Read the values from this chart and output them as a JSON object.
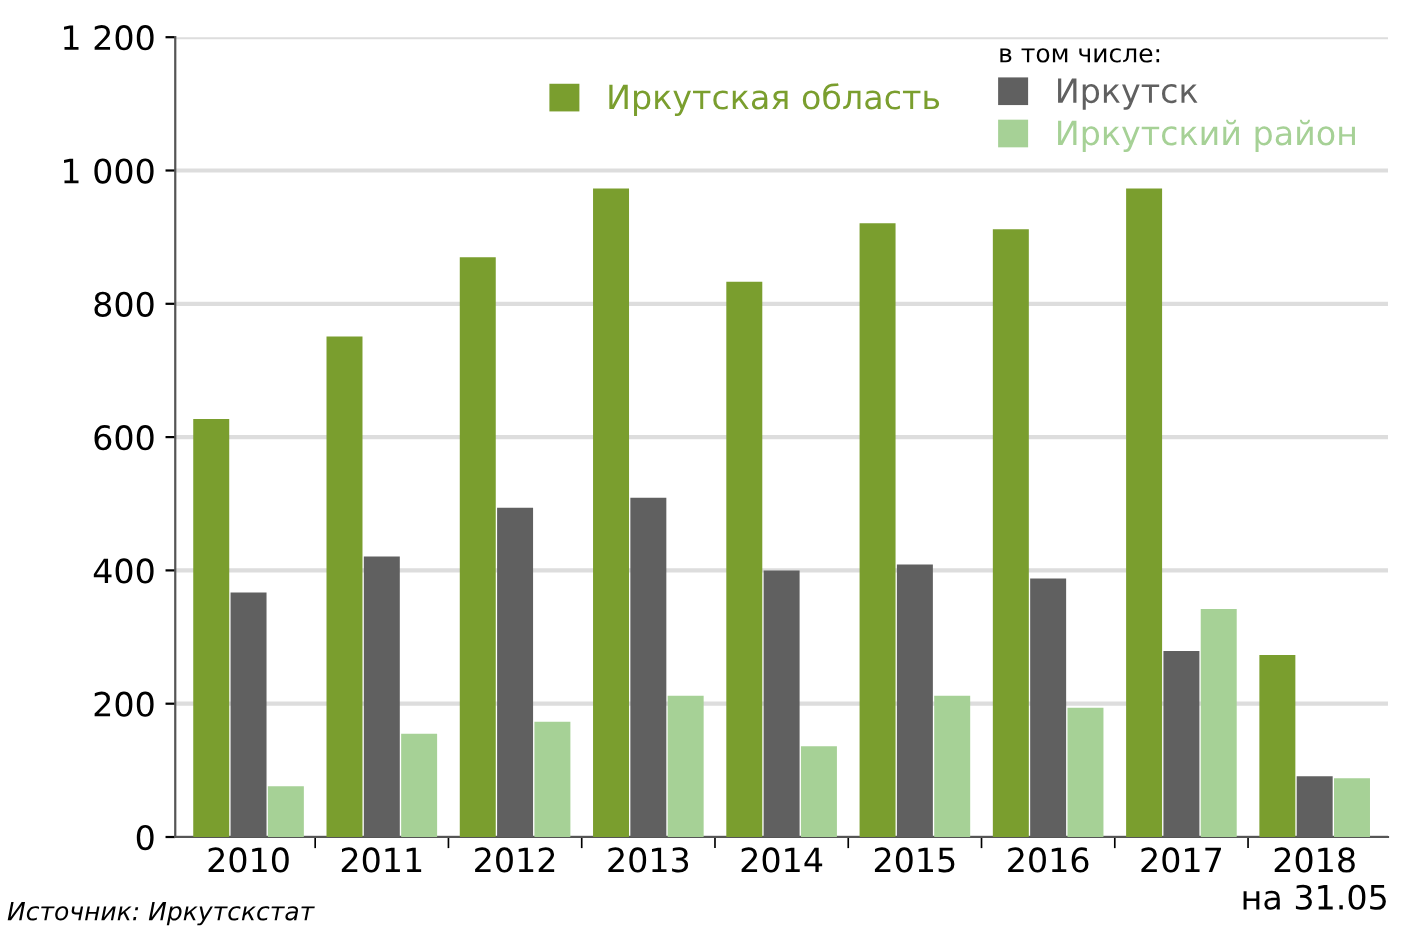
{
  "chart_data": {
    "type": "bar",
    "categories": [
      "2010",
      "2011",
      "2012",
      "2013",
      "2014",
      "2015",
      "2016",
      "2017",
      "2018\nна 31.05"
    ],
    "series": [
      {
        "name": "Иркутская область",
        "color": "#7a9e2e",
        "values": [
          627,
          751,
          870,
          973,
          833,
          921,
          912,
          973,
          273
        ]
      },
      {
        "name": "Иркутск",
        "color": "#606060",
        "values": [
          367,
          421,
          494,
          509,
          400,
          409,
          388,
          279,
          91
        ]
      },
      {
        "name": "Иркутский район",
        "color": "#a6d196",
        "values": [
          76,
          155,
          173,
          212,
          136,
          212,
          194,
          342,
          88
        ]
      }
    ],
    "legend_title": "в том числе:",
    "legend": "top right",
    "ylim": [
      0,
      1200
    ],
    "yticks": [
      0,
      200,
      400,
      600,
      800,
      {
        "value": 1000,
        "label": "1 000"
      },
      {
        "value": 1200,
        "label": "1 200"
      }
    ],
    "grid": "y",
    "annotations": [
      "Источник: Иркутскстат"
    ]
  }
}
